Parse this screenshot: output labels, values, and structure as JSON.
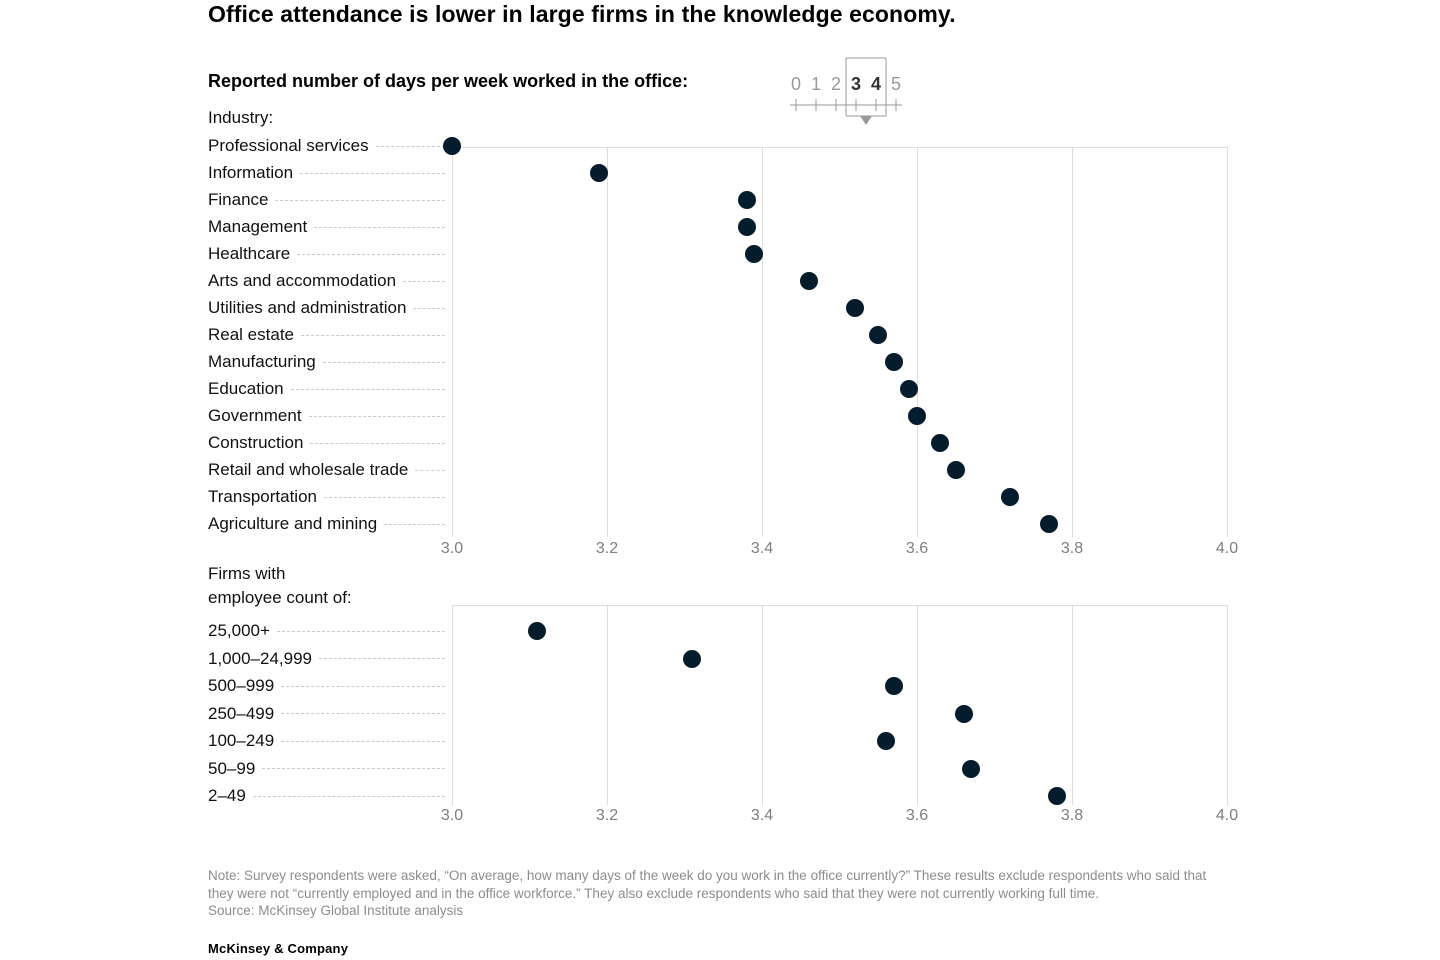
{
  "title": "Office attendance is lower in large firms in the knowledge economy.",
  "subtitle": "Reported number of days per week worked in the office:",
  "legend": {
    "numbers": [
      "0",
      "1",
      "2",
      "3",
      "4",
      "5"
    ],
    "highlight_start": 3,
    "highlight_end": 4
  },
  "chart_data": [
    {
      "type": "scatter",
      "style": "dot-plot",
      "group_label": "Industry:",
      "categories": [
        "Professional services",
        "Information",
        "Finance",
        "Management",
        "Healthcare",
        "Arts and accommodation",
        "Utilities and administration",
        "Real estate",
        "Manufacturing",
        "Education",
        "Government",
        "Construction",
        "Retail and wholesale trade",
        "Transportation",
        "Agriculture and mining"
      ],
      "values": [
        3.0,
        3.19,
        3.38,
        3.38,
        3.39,
        3.46,
        3.52,
        3.55,
        3.57,
        3.59,
        3.6,
        3.63,
        3.65,
        3.72,
        3.77
      ],
      "xlim": [
        3.0,
        4.0
      ],
      "xticks": [
        3.0,
        3.2,
        3.4,
        3.6,
        3.8,
        4.0
      ],
      "xtick_labels": [
        "3.0",
        "3.2",
        "3.4",
        "3.6",
        "3.8",
        "4.0"
      ],
      "grid": "vertical"
    },
    {
      "type": "scatter",
      "style": "dot-plot",
      "group_label": "Firms with\nemployee count of:",
      "categories": [
        "25,000+",
        "1,000–24,999",
        "500–999",
        "250–499",
        "100–249",
        "50–99",
        "2–49"
      ],
      "values": [
        3.11,
        3.31,
        3.57,
        3.66,
        3.56,
        3.67,
        3.78
      ],
      "xlim": [
        3.0,
        4.0
      ],
      "xticks": [
        3.0,
        3.2,
        3.4,
        3.6,
        3.8,
        4.0
      ],
      "xtick_labels": [
        "3.0",
        "3.2",
        "3.4",
        "3.6",
        "3.8",
        "4.0"
      ],
      "grid": "vertical"
    }
  ],
  "note": "Note: Survey respondents were asked, “On average, how many days of the week do you work in the office currently?” These results exclude respondents who said that they were not “currently employed and in the office workforce.” They also exclude respondents who said that they were not currently working full time.",
  "source": "Source: McKinsey Global Institute analysis",
  "footer": "McKinsey & Company",
  "colors": {
    "dot": "#051C2C",
    "gridline": "#dcdcdc",
    "leader": "#c9c9c9",
    "tick_text": "#7d7d7d",
    "note_text": "#8c8c8c",
    "legend_muted": "#9a9a9a",
    "legend_highlight": "#333333"
  }
}
